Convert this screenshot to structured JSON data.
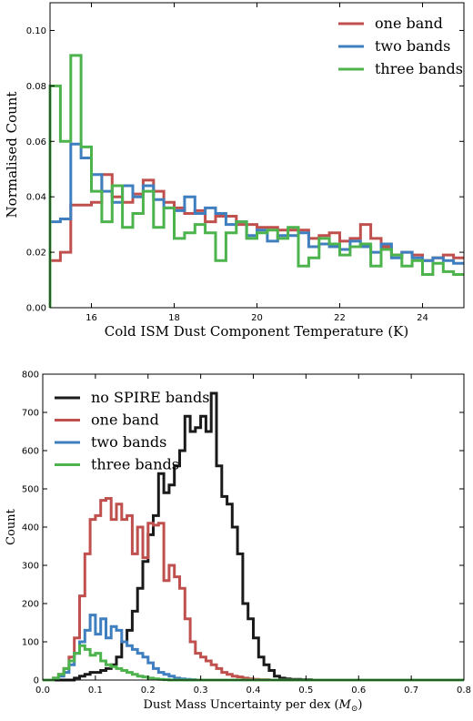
{
  "colors": {
    "red": "#c0504d",
    "blue": "#3f7fbf",
    "green": "#4db34d",
    "black": "#1a1a1a"
  },
  "chart_data": [
    {
      "type": "histogram",
      "xlabel": "Cold ISM Dust Component Temperature (K)",
      "ylabel": "Normalised Count",
      "xlim": [
        15.0,
        25.0
      ],
      "ylim": [
        0.0,
        0.11
      ],
      "xticks": [
        "16",
        "18",
        "20",
        "22",
        "24"
      ],
      "xtick_values": [
        16,
        18,
        20,
        22,
        24
      ],
      "yticks": [
        "0.00",
        "0.02",
        "0.04",
        "0.06",
        "0.08",
        "0.10"
      ],
      "ytick_values": [
        0.0,
        0.02,
        0.04,
        0.06,
        0.08,
        0.1
      ],
      "legend": "top-right",
      "bin_start": 15.0,
      "bin_width": 0.25,
      "series": [
        {
          "name": "one band",
          "color": "#c0504d",
          "values": [
            0.017,
            0.02,
            0.037,
            0.037,
            0.038,
            0.048,
            0.04,
            0.038,
            0.041,
            0.046,
            0.042,
            0.038,
            0.036,
            0.034,
            0.035,
            0.031,
            0.033,
            0.033,
            0.03,
            0.03,
            0.029,
            0.029,
            0.028,
            0.028,
            0.028,
            0.025,
            0.026,
            0.027,
            0.024,
            0.025,
            0.03,
            0.025,
            0.022,
            0.019,
            0.02,
            0.019,
            0.017,
            0.018,
            0.019,
            0.018
          ]
        },
        {
          "name": "two bands",
          "color": "#3f7fbf",
          "values": [
            0.031,
            0.032,
            0.059,
            0.054,
            0.048,
            0.042,
            0.038,
            0.044,
            0.04,
            0.044,
            0.039,
            0.036,
            0.035,
            0.04,
            0.034,
            0.036,
            0.034,
            0.03,
            0.031,
            0.026,
            0.028,
            0.024,
            0.026,
            0.026,
            0.027,
            0.022,
            0.023,
            0.022,
            0.021,
            0.024,
            0.022,
            0.02,
            0.023,
            0.018,
            0.02,
            0.018,
            0.017,
            0.018,
            0.017,
            0.016
          ]
        },
        {
          "name": "three bands",
          "color": "#4db34d",
          "values": [
            0.08,
            0.06,
            0.091,
            0.058,
            0.042,
            0.031,
            0.044,
            0.029,
            0.034,
            0.042,
            0.029,
            0.036,
            0.025,
            0.027,
            0.03,
            0.027,
            0.017,
            0.027,
            0.031,
            0.025,
            0.027,
            0.028,
            0.025,
            0.029,
            0.015,
            0.018,
            0.025,
            0.023,
            0.019,
            0.022,
            0.023,
            0.015,
            0.021,
            0.019,
            0.015,
            0.017,
            0.012,
            0.016,
            0.013,
            0.012
          ]
        }
      ]
    },
    {
      "type": "histogram",
      "xlabel": "Dust Mass Uncertainty per dex (",
      "xlabel_math": "M",
      "xlabel_sub": "⊙",
      "xlabel_end": ")",
      "ylabel": "Count",
      "xlim": [
        0.0,
        0.8
      ],
      "ylim": [
        0,
        800
      ],
      "xticks": [
        "0.0",
        "0.1",
        "0.2",
        "0.3",
        "0.4",
        "0.5",
        "0.6",
        "0.7",
        "0.8"
      ],
      "xtick_values": [
        0.0,
        0.1,
        0.2,
        0.3,
        0.4,
        0.5,
        0.6,
        0.7,
        0.8
      ],
      "yticks": [
        "0",
        "100",
        "200",
        "300",
        "400",
        "500",
        "600",
        "700",
        "800"
      ],
      "ytick_values": [
        0,
        100,
        200,
        300,
        400,
        500,
        600,
        700,
        800
      ],
      "legend": "top-left",
      "bin_start": 0.0,
      "bin_width": 0.01,
      "series": [
        {
          "name": "no SPIRE bands",
          "color": "#1a1a1a",
          "values": [
            0,
            0,
            0,
            0,
            0,
            0,
            5,
            10,
            15,
            20,
            20,
            25,
            30,
            40,
            60,
            100,
            130,
            180,
            240,
            310,
            380,
            430,
            540,
            490,
            510,
            560,
            600,
            690,
            650,
            660,
            690,
            650,
            750,
            560,
            480,
            460,
            400,
            330,
            200,
            160,
            110,
            60,
            40,
            25,
            10,
            5,
            3,
            2,
            2,
            1,
            1,
            0,
            0,
            0,
            0,
            0,
            0,
            0,
            0,
            0,
            0,
            0,
            0,
            0,
            0,
            0,
            0,
            0,
            0,
            0,
            0,
            0,
            0,
            0,
            0,
            0,
            0,
            0,
            0,
            0
          ]
        },
        {
          "name": "one band",
          "color": "#c0504d",
          "values": [
            0,
            0,
            5,
            15,
            30,
            60,
            110,
            220,
            330,
            420,
            430,
            470,
            475,
            420,
            460,
            420,
            430,
            330,
            400,
            320,
            410,
            405,
            410,
            260,
            300,
            270,
            240,
            160,
            100,
            70,
            60,
            50,
            40,
            30,
            20,
            15,
            10,
            8,
            5,
            3,
            2,
            1,
            1,
            0,
            0,
            0,
            0,
            0,
            0,
            0,
            0,
            0,
            0,
            0,
            0,
            0,
            0,
            0,
            0,
            0,
            0,
            0,
            0,
            0,
            0,
            0,
            0,
            0,
            0,
            0,
            0,
            0,
            0,
            0,
            0,
            0,
            0,
            0,
            0,
            0
          ]
        },
        {
          "name": "two bands",
          "color": "#3f7fbf",
          "values": [
            0,
            0,
            3,
            10,
            20,
            40,
            70,
            100,
            130,
            170,
            120,
            160,
            110,
            140,
            130,
            100,
            90,
            80,
            70,
            60,
            45,
            30,
            20,
            15,
            10,
            5,
            3,
            2,
            1,
            0,
            0,
            0,
            0,
            0,
            0,
            0,
            0,
            0,
            0,
            0,
            0,
            0,
            0,
            0,
            0,
            0,
            0,
            0,
            0,
            0,
            0,
            0,
            0,
            0,
            0,
            0,
            0,
            0,
            0,
            0,
            0,
            0,
            0,
            0,
            0,
            0,
            0,
            0,
            0,
            0,
            0,
            0,
            0,
            0,
            0,
            0,
            0,
            0,
            0,
            0
          ]
        },
        {
          "name": "three bands",
          "color": "#4db34d",
          "values": [
            0,
            0,
            5,
            15,
            30,
            50,
            70,
            90,
            80,
            65,
            70,
            50,
            40,
            35,
            30,
            25,
            20,
            15,
            10,
            8,
            5,
            3,
            2,
            1,
            0,
            0,
            0,
            0,
            0,
            0,
            0,
            0,
            0,
            0,
            0,
            0,
            0,
            0,
            0,
            0,
            0,
            0,
            0,
            0,
            0,
            0,
            0,
            0,
            0,
            0,
            0,
            0,
            0,
            0,
            0,
            0,
            0,
            0,
            0,
            0,
            0,
            0,
            0,
            0,
            0,
            0,
            0,
            0,
            0,
            0,
            0,
            0,
            0,
            0,
            0,
            0,
            0,
            0,
            0,
            0
          ]
        }
      ]
    }
  ]
}
